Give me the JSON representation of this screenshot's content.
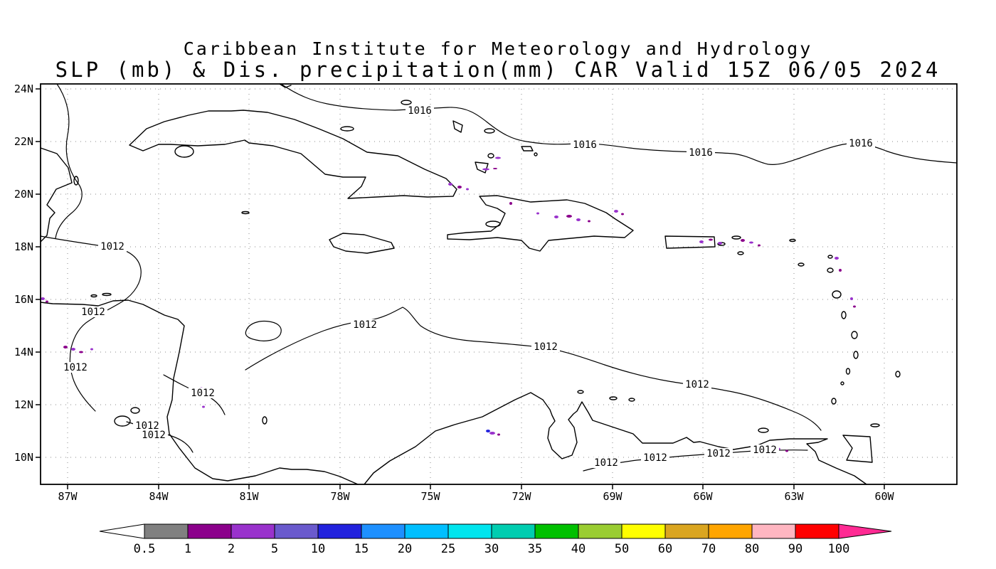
{
  "header": {
    "line1": "Caribbean Institute for Meteorology and Hydrology",
    "line2": "SLP (mb) & Dis. precipitation(mm) CAR Valid 15Z 06/05 2024"
  },
  "map": {
    "x_axis_labels": [
      "87W",
      "84W",
      "81W",
      "78W",
      "75W",
      "72W",
      "69W",
      "66W",
      "63W",
      "60W"
    ],
    "y_axis_labels": [
      "24N",
      "22N",
      "20N",
      "18N",
      "16N",
      "14N",
      "12N",
      "10N"
    ],
    "contours": {
      "high": "1016",
      "low": "1012"
    }
  },
  "colorbar": {
    "labels": [
      "0.5",
      "1",
      "2",
      "5",
      "10",
      "15",
      "20",
      "25",
      "30",
      "35",
      "40",
      "50",
      "60",
      "70",
      "80",
      "90",
      "100"
    ],
    "colors": [
      "#808080",
      "#8b008b",
      "#9932cc",
      "#6a5acd",
      "#2222dd",
      "#1e90ff",
      "#00bfff",
      "#00e5ee",
      "#00cdb0",
      "#00c000",
      "#9acd32",
      "#ffff00",
      "#daa520",
      "#ffa500",
      "#ffb6c1",
      "#ff0000"
    ],
    "left_arrow_color": "#ffffff",
    "right_arrow_color": "#ff2a93"
  }
}
